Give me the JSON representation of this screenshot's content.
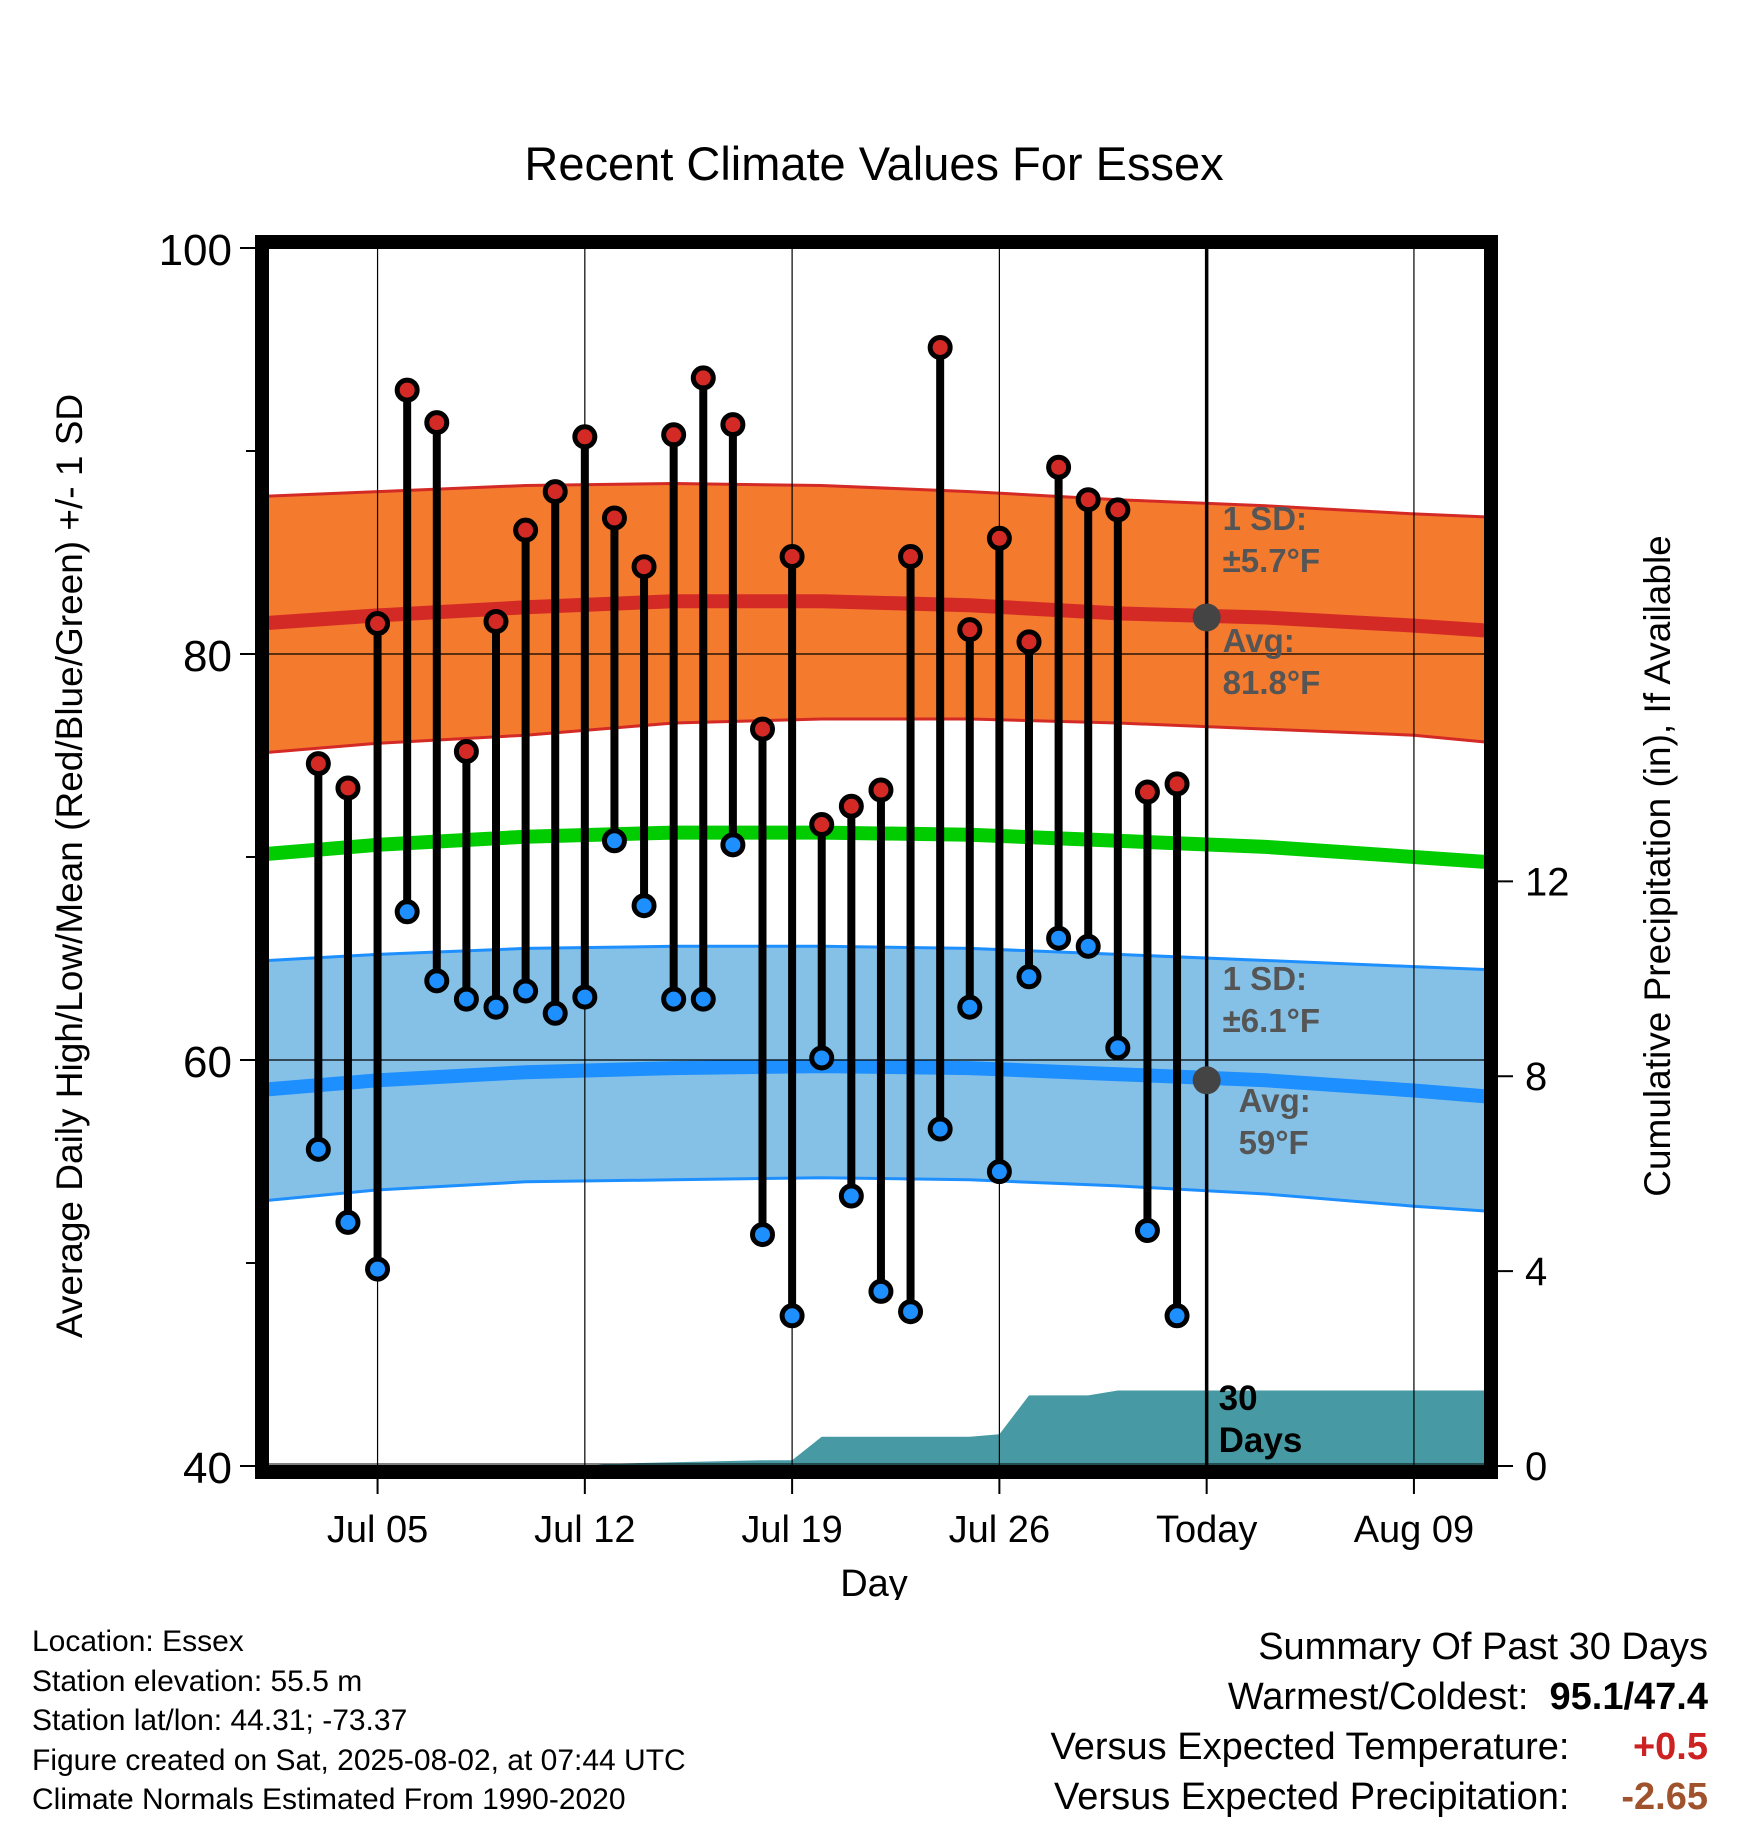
{
  "title": "Recent Climate Values For Essex",
  "chart_data": {
    "type": "line",
    "title": "Recent Climate Values For Essex",
    "xlabel": "Day",
    "ylabel": "Average Daily High/Low/Mean (Red/Blue/Green) +/- 1 SD",
    "y2label": "Cumulative Precipitation (in), If Available",
    "x_ticks": [
      "Jul 05",
      "Jul 12",
      "Jul 19",
      "Jul 26",
      "Today",
      "Aug 09"
    ],
    "x_tick_days": [
      5,
      12,
      19,
      26,
      33,
      40
    ],
    "xlim": [
      1.3,
      42.4
    ],
    "y_ticks": [
      40,
      60,
      80,
      100
    ],
    "ylim": [
      40,
      100
    ],
    "y2_ticks": [
      0,
      4,
      8,
      12
    ],
    "y2lim": [
      0,
      25
    ],
    "today_day": 33,
    "days": [
      3,
      4,
      5,
      6,
      7,
      8,
      9,
      10,
      11,
      12,
      13,
      14,
      15,
      16,
      17,
      18,
      19,
      20,
      21,
      22,
      23,
      24,
      25,
      26,
      27,
      28,
      29,
      30,
      31,
      32
    ],
    "highs": [
      74.6,
      73.4,
      81.5,
      93.0,
      91.4,
      75.2,
      81.6,
      86.1,
      88.0,
      90.7,
      86.7,
      84.3,
      90.8,
      93.6,
      91.3,
      76.3,
      84.8,
      71.6,
      72.5,
      73.3,
      84.8,
      95.1,
      81.2,
      85.7,
      80.6,
      89.2,
      87.6,
      87.1,
      73.2,
      73.6
    ],
    "lows": [
      55.6,
      52.0,
      49.7,
      67.3,
      63.9,
      63.0,
      62.6,
      63.4,
      62.3,
      63.1,
      70.8,
      67.6,
      63.0,
      63.0,
      70.6,
      51.4,
      47.4,
      60.1,
      53.3,
      48.6,
      47.6,
      56.6,
      62.6,
      54.5,
      64.1,
      66.0,
      65.6,
      60.6,
      51.6,
      47.4
    ],
    "normal_high": {
      "days": [
        0,
        5,
        10,
        15,
        20,
        25,
        30,
        35,
        40,
        45
      ],
      "mean": [
        81.4,
        81.9,
        82.3,
        82.6,
        82.6,
        82.4,
        82.0,
        81.8,
        81.4,
        80.9
      ],
      "upper": [
        87.7,
        88.0,
        88.3,
        88.4,
        88.3,
        88.0,
        87.6,
        87.3,
        86.9,
        86.6
      ],
      "lower": [
        75.0,
        75.6,
        76.0,
        76.6,
        76.8,
        76.8,
        76.6,
        76.3,
        76.0,
        75.3
      ]
    },
    "normal_mean": {
      "days": [
        0,
        5,
        10,
        15,
        20,
        25,
        30,
        35,
        40,
        45
      ],
      "values": [
        70.0,
        70.6,
        71.0,
        71.2,
        71.2,
        71.1,
        70.8,
        70.5,
        70.0,
        69.5
      ]
    },
    "normal_low": {
      "days": [
        0,
        5,
        10,
        15,
        20,
        25,
        30,
        35,
        40,
        45
      ],
      "mean": [
        58.4,
        59.0,
        59.4,
        59.6,
        59.7,
        59.6,
        59.3,
        59.0,
        58.5,
        57.9
      ],
      "upper": [
        64.8,
        65.2,
        65.5,
        65.6,
        65.6,
        65.5,
        65.2,
        64.9,
        64.6,
        64.3
      ],
      "lower": [
        52.9,
        53.6,
        54.0,
        54.1,
        54.2,
        54.1,
        53.8,
        53.4,
        52.8,
        52.3
      ]
    },
    "precip": {
      "days": [
        1.3,
        12,
        13,
        18,
        19,
        20,
        25,
        26,
        27,
        29,
        30,
        42.4
      ],
      "values": [
        0,
        0,
        0.05,
        0.12,
        0.12,
        0.6,
        0.6,
        0.65,
        1.45,
        1.45,
        1.55,
        1.55
      ]
    },
    "today_annotations": {
      "high_sd": "1 SD:",
      "high_sd_value": "±5.7°F",
      "high_avg": "Avg:",
      "high_avg_value": "81.8°F",
      "high_avg_marker": 81.8,
      "low_sd": "1 SD:",
      "low_sd_value": "±6.1°F",
      "low_avg": "Avg:",
      "low_avg_value": "59°F",
      "low_avg_marker": 59,
      "window_label_1": "30",
      "window_label_2": "Days"
    },
    "colors": {
      "high_band": "#f47a2e",
      "high_line": "#d42a25",
      "high_edge": "#d42a25",
      "mean_line": "#00cc00",
      "low_band": "#85c1e7",
      "low_line": "#1e8fff",
      "low_edge": "#1e8fff",
      "precip": "#479aa3",
      "annotation": "#555555",
      "high_dot": "#d42a25",
      "low_dot": "#1e8fff"
    }
  },
  "footer": {
    "location": "Location: Essex",
    "elevation": "Station elevation: 55.5 m",
    "latlon": "Station lat/lon: 44.31; -73.37",
    "created": "Figure created on Sat, 2025-08-02, at 07:44 UTC",
    "normals": "Climate Normals Estimated From 1990-2020"
  },
  "summary": {
    "heading": "Summary Of Past 30 Days",
    "warm_cold_label": "Warmest/Coldest:",
    "warm_cold_value": "95.1/47.4",
    "temp_label": "Versus Expected Temperature:",
    "temp_value": "+0.5",
    "temp_color": "#cc2222",
    "precip_label": "Versus Expected Precipitation:",
    "precip_value": "-2.65",
    "precip_color": "#a0522d"
  }
}
